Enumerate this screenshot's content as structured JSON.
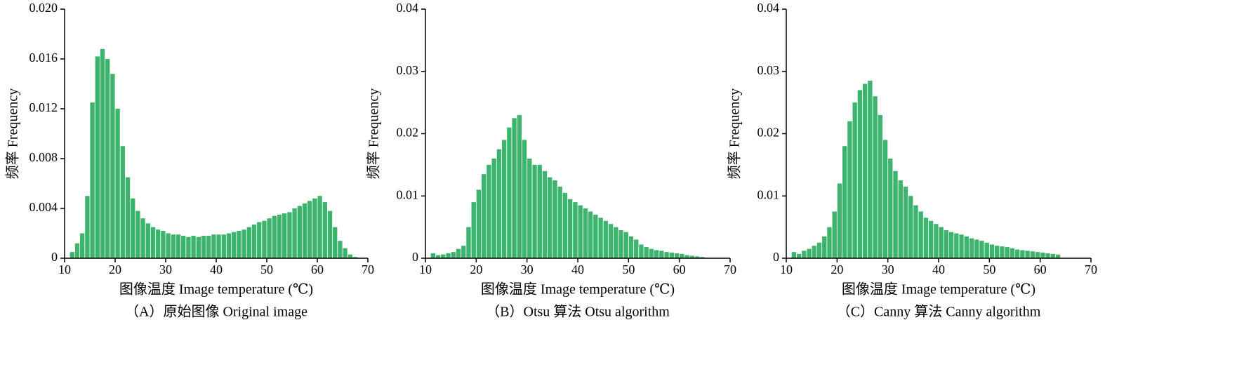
{
  "chart_data": [
    {
      "type": "histogram",
      "color": "#3db46d",
      "ylabel": "频率 Frequency",
      "xlabel": "图像温度 Image temperature (℃)",
      "caption": "（A）原始图像 Original image",
      "bins": [
        11,
        12,
        13,
        14,
        15,
        16,
        17,
        18,
        19,
        20,
        21,
        22,
        23,
        24,
        25,
        26,
        27,
        28,
        29,
        30,
        31,
        32,
        33,
        34,
        35,
        36,
        37,
        38,
        39,
        40,
        41,
        42,
        43,
        44,
        45,
        46,
        47,
        48,
        49,
        50,
        51,
        52,
        53,
        54,
        55,
        56,
        57,
        58,
        59,
        60,
        61,
        62,
        63,
        64,
        65,
        66,
        67,
        68
      ],
      "values": [
        0.0005,
        0.0012,
        0.002,
        0.005,
        0.0125,
        0.0162,
        0.0168,
        0.016,
        0.0148,
        0.012,
        0.009,
        0.0065,
        0.0048,
        0.0038,
        0.0032,
        0.0028,
        0.0025,
        0.0023,
        0.0022,
        0.002,
        0.0019,
        0.0019,
        0.0018,
        0.0017,
        0.0018,
        0.0017,
        0.0018,
        0.0018,
        0.0019,
        0.0019,
        0.0019,
        0.002,
        0.0021,
        0.0022,
        0.0023,
        0.0025,
        0.0027,
        0.0029,
        0.003,
        0.0032,
        0.0034,
        0.0035,
        0.0036,
        0.0037,
        0.004,
        0.0042,
        0.0044,
        0.0046,
        0.0048,
        0.005,
        0.0045,
        0.0038,
        0.0025,
        0.0014,
        0.0008,
        0.0003,
        0.0001
      ],
      "xlim": [
        10,
        70
      ],
      "xticks": [
        10,
        20,
        30,
        40,
        50,
        60,
        70
      ],
      "ylim": [
        0,
        0.02
      ],
      "yticks": [
        0,
        0.004,
        0.008,
        0.012,
        0.016,
        {
          "value": 0.02,
          "label": "0.020"
        }
      ]
    },
    {
      "type": "histogram",
      "color": "#3db46d",
      "ylabel": "频率 Frequency",
      "xlabel": "图像温度 Image temperature (℃)",
      "caption": "（B）Otsu 算法 Otsu algorithm",
      "bins": [
        11,
        12,
        13,
        14,
        15,
        16,
        17,
        18,
        19,
        20,
        21,
        22,
        23,
        24,
        25,
        26,
        27,
        28,
        29,
        30,
        31,
        32,
        33,
        34,
        35,
        36,
        37,
        38,
        39,
        40,
        41,
        42,
        43,
        44,
        45,
        46,
        47,
        48,
        49,
        50,
        51,
        52,
        53,
        54,
        55,
        56,
        57,
        58,
        59,
        60,
        61,
        62,
        63,
        64,
        65
      ],
      "values": [
        0.0008,
        0.0005,
        0.0006,
        0.0008,
        0.001,
        0.0015,
        0.002,
        0.005,
        0.009,
        0.011,
        0.0135,
        0.015,
        0.016,
        0.0175,
        0.019,
        0.021,
        0.0225,
        0.023,
        0.019,
        0.016,
        0.015,
        0.015,
        0.014,
        0.013,
        0.0125,
        0.0115,
        0.0105,
        0.0095,
        0.009,
        0.0085,
        0.008,
        0.0075,
        0.007,
        0.0065,
        0.006,
        0.0055,
        0.005,
        0.0045,
        0.0042,
        0.0035,
        0.003,
        0.0022,
        0.0018,
        0.0015,
        0.0013,
        0.0012,
        0.001,
        0.0009,
        0.0008,
        0.0007,
        0.0005,
        0.0004,
        0.0003,
        0.0002
      ],
      "xlim": [
        10,
        70
      ],
      "xticks": [
        10,
        20,
        30,
        40,
        50,
        60,
        70
      ],
      "ylim": [
        0,
        0.04
      ],
      "yticks": [
        0,
        0.01,
        0.02,
        0.03,
        0.04
      ]
    },
    {
      "type": "histogram",
      "color": "#3db46d",
      "ylabel": "频率 Frequency",
      "xlabel": "图像温度 Image temperature (℃)",
      "caption": "（C）Canny 算法 Canny algorithm",
      "bins": [
        11,
        12,
        13,
        14,
        15,
        16,
        17,
        18,
        19,
        20,
        21,
        22,
        23,
        24,
        25,
        26,
        27,
        28,
        29,
        30,
        31,
        32,
        33,
        34,
        35,
        36,
        37,
        38,
        39,
        40,
        41,
        42,
        43,
        44,
        45,
        46,
        47,
        48,
        49,
        50,
        51,
        52,
        53,
        54,
        55,
        56,
        57,
        58,
        59,
        60,
        61,
        62,
        63,
        64
      ],
      "values": [
        0.001,
        0.0007,
        0.0012,
        0.0015,
        0.002,
        0.0025,
        0.0035,
        0.005,
        0.0075,
        0.012,
        0.018,
        0.022,
        0.025,
        0.027,
        0.028,
        0.0285,
        0.026,
        0.023,
        0.019,
        0.016,
        0.014,
        0.0125,
        0.0115,
        0.01,
        0.0085,
        0.0075,
        0.0065,
        0.006,
        0.0055,
        0.005,
        0.0045,
        0.0042,
        0.004,
        0.0038,
        0.0035,
        0.0032,
        0.003,
        0.0028,
        0.0025,
        0.0022,
        0.002,
        0.0019,
        0.0018,
        0.0016,
        0.0014,
        0.0013,
        0.0012,
        0.0011,
        0.001,
        0.0009,
        0.0008,
        0.0007,
        0.0006
      ],
      "xlim": [
        10,
        70
      ],
      "xticks": [
        10,
        20,
        30,
        40,
        50,
        60,
        70
      ],
      "ylim": [
        0,
        0.04
      ],
      "yticks": [
        0,
        0.01,
        0.02,
        0.03,
        0.04
      ]
    }
  ]
}
